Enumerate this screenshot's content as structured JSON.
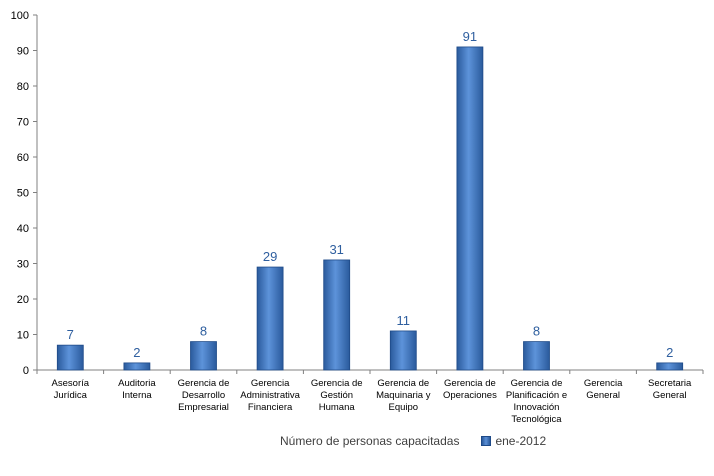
{
  "chart_data": {
    "type": "bar",
    "categories": [
      [
        "Asesoría",
        "Jurídica"
      ],
      [
        "Auditoria",
        "Interna"
      ],
      [
        "Gerencia de",
        "Desarrollo",
        "Empresarial"
      ],
      [
        "Gerencia",
        "Administrativa",
        "Financiera"
      ],
      [
        "Gerencia de",
        "Gestión",
        "Humana"
      ],
      [
        "Gerencia de",
        "Maquinaria y",
        "Equipo"
      ],
      [
        "Gerencia de",
        "Operaciones"
      ],
      [
        "Gerencia de",
        "Planificación e",
        "Innovación",
        "Tecnológica"
      ],
      [
        "Gerencia",
        "General"
      ],
      [
        "Secretaria",
        "General"
      ]
    ],
    "series": [
      {
        "name": "ene-2012",
        "values": [
          7,
          2,
          8,
          29,
          31,
          11,
          91,
          8,
          null,
          2
        ]
      }
    ],
    "data_labels": [
      "7",
      "2",
      "8",
      "29",
      "31",
      "11",
      "91",
      "8",
      "",
      "2"
    ],
    "ylim": [
      0,
      100
    ],
    "yticks": [
      0,
      10,
      20,
      30,
      40,
      50,
      60,
      70,
      80,
      90,
      100
    ],
    "grid": false,
    "legend_position": "bottom",
    "legend_title": "Número de personas capacitadas",
    "colors": {
      "bar": "#3c6fb8",
      "bar_dark": "#1e4a88",
      "label": "#2f5f9f",
      "axis": "#808080",
      "text": "#000000"
    }
  }
}
